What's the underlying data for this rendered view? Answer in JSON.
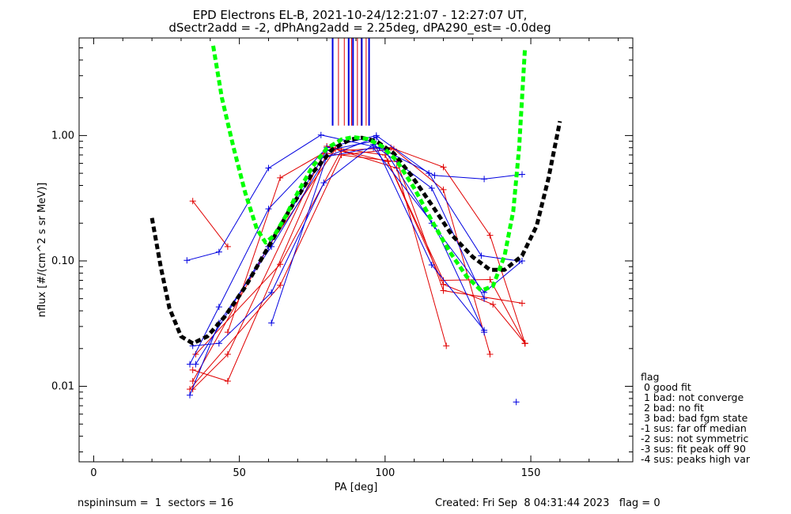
{
  "chart_data": {
    "type": "scatter",
    "title": "EPD Electrons EL-B, 2021-10-24/12:21:07 - 12:27:07 UT,",
    "subtitle": "dSectr2add = -2, dPhAng2add = 2.25deg, dPA290_est=  -0.0deg",
    "xlabel": "PA [deg]",
    "ylabel": "nflux [#/(cm^2 s sr MeV)]",
    "xlim": [
      -5,
      185
    ],
    "ylim": [
      0.0025,
      6
    ],
    "yscale": "log",
    "xticks": [
      0,
      50,
      100,
      150
    ],
    "yticks": [
      {
        "value": 0.01,
        "label": "0.01"
      },
      {
        "value": 0.1,
        "label": "0.10"
      },
      {
        "value": 1.0,
        "label": "1.00"
      }
    ],
    "colors": {
      "red": "#e00000",
      "blue": "#0000e0",
      "green": "#00ff00",
      "black": "#000000"
    },
    "red_curves": [
      [
        [
          34,
          0.3
        ],
        [
          46,
          0.13
        ]
      ],
      [
        [
          34,
          0.0135
        ],
        [
          46,
          0.011
        ],
        [
          80,
          0.72
        ],
        [
          104,
          0.62
        ],
        [
          120,
          0.058
        ],
        [
          147,
          0.046
        ]
      ],
      [
        [
          34,
          0.0095
        ],
        [
          46,
          0.018
        ],
        [
          80,
          0.82
        ],
        [
          104,
          0.55
        ],
        [
          121,
          0.021
        ]
      ],
      [
        [
          35,
          0.018
        ],
        [
          64,
          0.094
        ],
        [
          85,
          0.76
        ],
        [
          102,
          0.8
        ],
        [
          120,
          0.56
        ],
        [
          136,
          0.16
        ],
        [
          148,
          0.022
        ]
      ],
      [
        [
          33,
          0.0095
        ],
        [
          64,
          0.064
        ],
        [
          85,
          0.7
        ],
        [
          103,
          0.78
        ],
        [
          120,
          0.37
        ],
        [
          136,
          0.018
        ]
      ],
      [
        [
          46,
          0.027
        ],
        [
          64,
          0.46
        ],
        [
          82,
          0.8
        ],
        [
          100,
          0.7
        ],
        [
          120,
          0.07
        ],
        [
          136,
          0.071
        ],
        [
          148,
          0.022
        ]
      ],
      [
        [
          34,
          0.011
        ],
        [
          60,
          0.13
        ],
        [
          83,
          0.78
        ],
        [
          101,
          0.62
        ],
        [
          120,
          0.065
        ],
        [
          137,
          0.045
        ],
        [
          148,
          0.022
        ]
      ]
    ],
    "blue_curves": [
      [
        [
          32,
          0.101
        ],
        [
          43,
          0.118
        ],
        [
          60,
          0.55
        ],
        [
          78,
          1.01
        ],
        [
          98,
          0.8
        ],
        [
          117,
          0.48
        ],
        [
          134,
          0.45
        ],
        [
          147,
          0.49
        ]
      ],
      [
        [
          33,
          0.015
        ],
        [
          43,
          0.043
        ],
        [
          60,
          0.26
        ],
        [
          80,
          0.8
        ],
        [
          97,
          1.0
        ],
        [
          115,
          0.5
        ],
        [
          133,
          0.11
        ],
        [
          146,
          0.1
        ]
      ],
      [
        [
          33,
          0.0085
        ],
        [
          43,
          0.032
        ],
        [
          61,
          0.13
        ],
        [
          80,
          0.68
        ],
        [
          97,
          0.97
        ],
        [
          116,
          0.2
        ],
        [
          134,
          0.056
        ],
        [
          147,
          0.1
        ]
      ],
      [
        [
          34,
          0.021
        ],
        [
          43,
          0.022
        ],
        [
          61,
          0.056
        ],
        [
          79,
          0.42
        ],
        [
          96,
          0.85
        ],
        [
          116,
          0.38
        ],
        [
          134,
          0.05
        ]
      ],
      [
        [
          35,
          0.015
        ],
        [
          60,
          0.13
        ],
        [
          80,
          0.76
        ],
        [
          96,
          0.9
        ],
        [
          116,
          0.093
        ],
        [
          134,
          0.028
        ]
      ],
      [
        [
          61,
          0.032
        ],
        [
          80,
          0.68
        ],
        [
          96,
          0.8
        ],
        [
          117,
          0.19
        ],
        [
          134,
          0.027
        ]
      ],
      [
        [
          145,
          0.0075
        ]
      ]
    ],
    "green_fit": [
      [
        41,
        5.2
      ],
      [
        44,
        2.0
      ],
      [
        48,
        0.8
      ],
      [
        52,
        0.35
      ],
      [
        56,
        0.18
      ],
      [
        59,
        0.14
      ],
      [
        62,
        0.16
      ],
      [
        66,
        0.23
      ],
      [
        70,
        0.35
      ],
      [
        75,
        0.56
      ],
      [
        80,
        0.79
      ],
      [
        85,
        0.93
      ],
      [
        89,
        0.97
      ],
      [
        94,
        0.94
      ],
      [
        99,
        0.82
      ],
      [
        104,
        0.63
      ],
      [
        110,
        0.38
      ],
      [
        116,
        0.21
      ],
      [
        122,
        0.12
      ],
      [
        128,
        0.075
      ],
      [
        133,
        0.058
      ],
      [
        137,
        0.063
      ],
      [
        141,
        0.11
      ],
      [
        144,
        0.25
      ],
      [
        146,
        0.8
      ],
      [
        148,
        5.0
      ]
    ],
    "black_fit": [
      [
        20,
        0.22
      ],
      [
        23,
        0.09
      ],
      [
        26,
        0.042
      ],
      [
        30,
        0.025
      ],
      [
        34,
        0.022
      ],
      [
        39,
        0.025
      ],
      [
        45,
        0.036
      ],
      [
        52,
        0.062
      ],
      [
        60,
        0.13
      ],
      [
        67,
        0.25
      ],
      [
        75,
        0.5
      ],
      [
        82,
        0.78
      ],
      [
        88,
        0.93
      ],
      [
        92,
        0.96
      ],
      [
        97,
        0.9
      ],
      [
        103,
        0.72
      ],
      [
        109,
        0.48
      ],
      [
        116,
        0.28
      ],
      [
        123,
        0.16
      ],
      [
        130,
        0.108
      ],
      [
        136,
        0.085
      ],
      [
        141,
        0.085
      ],
      [
        147,
        0.11
      ],
      [
        152,
        0.19
      ],
      [
        156,
        0.45
      ],
      [
        160,
        1.3
      ]
    ],
    "blue_vlines": [
      82,
      87.5,
      89,
      92,
      94.5
    ],
    "red_vlines": [
      84,
      86,
      88.5,
      90.5,
      91.8,
      93.5
    ],
    "vline_bottom": 1.2
  },
  "legend": {
    "header": "flag",
    "items": [
      " 0 good fit",
      " 1 bad: not converge",
      " 2 bad: no fit",
      " 3 bad: bad fgm state",
      "-1 sus: far off median",
      "-2 sus: not symmetric",
      "-3 sus: fit peak off 90",
      "-4 sus: peaks high var"
    ]
  },
  "footer": {
    "left": "nspininsum =  1  sectors = 16",
    "right": "Created: Fri Sep  8 04:31:44 2023   flag = 0"
  }
}
